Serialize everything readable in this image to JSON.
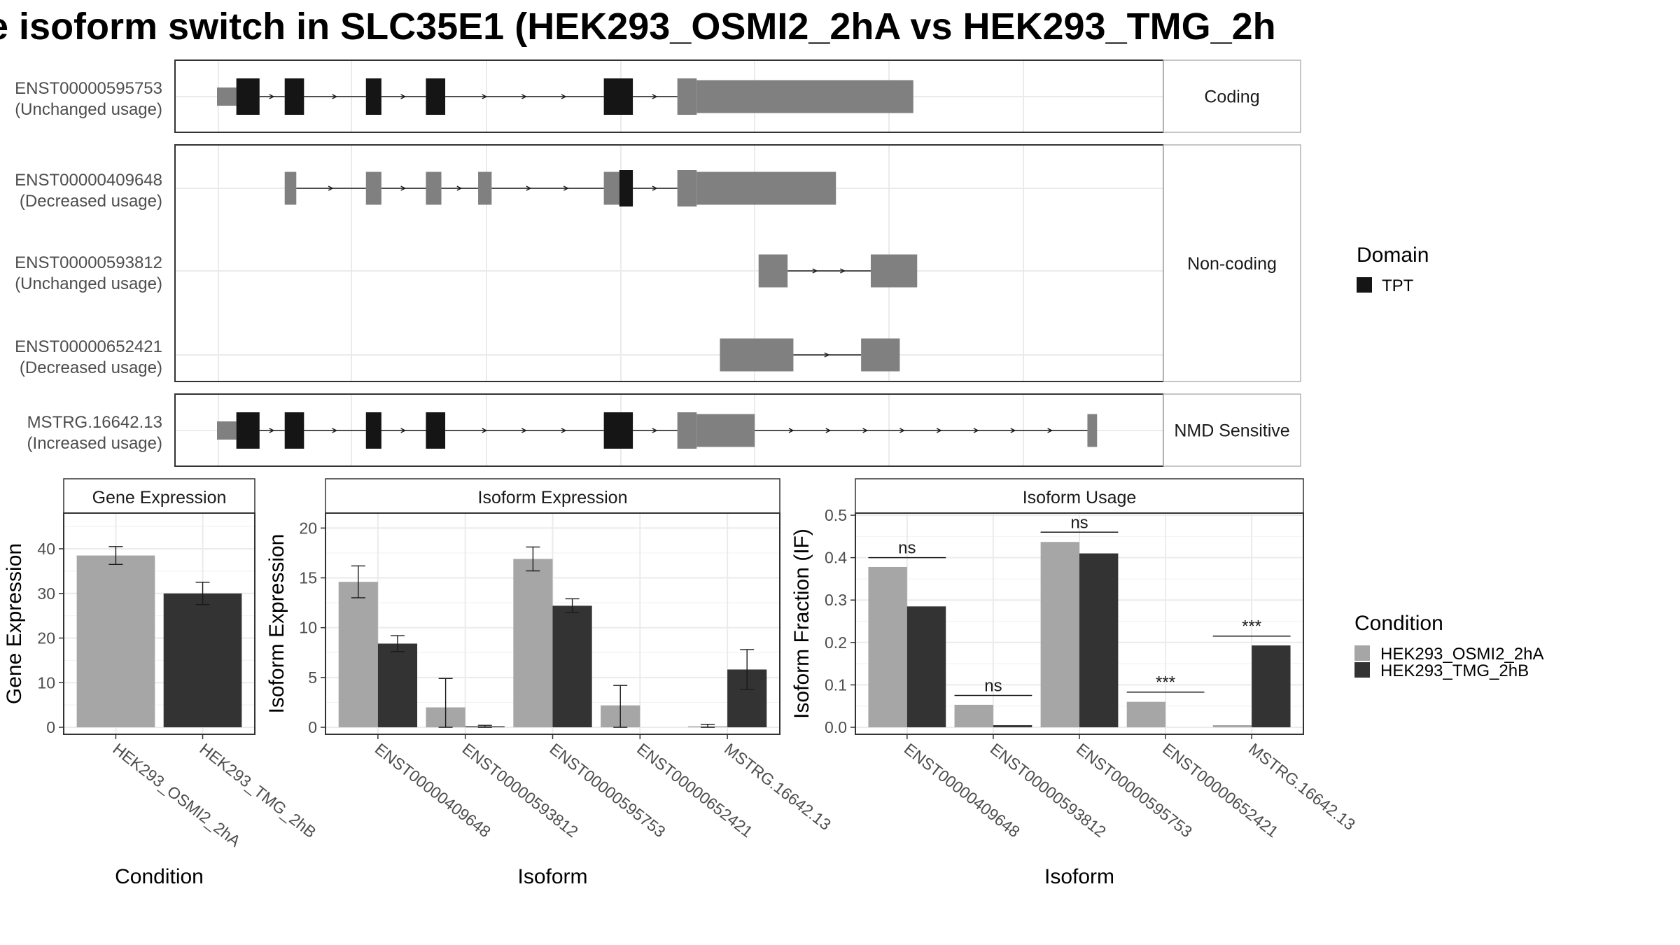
{
  "title": "e isoform switch in SLC35E1 (HEK293_OSMI2_2hA vs HEK293_TMG_2h",
  "colors": {
    "condA": "#a6a6a6",
    "condB": "#333333",
    "domain": "#151515",
    "utr": "#808080",
    "grid": "#ebebeb",
    "border": "#333333",
    "strip": "#ffffff"
  },
  "structure": {
    "panels": [
      {
        "label": "Coding",
        "rows": [
          0
        ]
      },
      {
        "label": "Non-coding",
        "rows": [
          1,
          2,
          3
        ]
      },
      {
        "label": "NMD Sensitive",
        "rows": [
          4
        ]
      }
    ],
    "isoforms": [
      {
        "id": "ENST00000595753",
        "usage": "(Unchanged usage)",
        "blocks": [
          [
            0.0,
            0.1,
            "utr",
            "s"
          ],
          [
            0.1,
            0.22,
            "dom",
            "t"
          ],
          [
            0.35,
            0.45,
            "dom",
            "t"
          ],
          [
            0.77,
            0.85,
            "dom",
            "t"
          ],
          [
            1.08,
            1.18,
            "dom",
            "t"
          ],
          [
            2.0,
            2.15,
            "dom",
            "t"
          ],
          [
            2.38,
            2.48,
            "utr",
            "t"
          ],
          [
            2.48,
            3.6,
            "utr",
            "m"
          ]
        ],
        "introns": [
          [
            0.22,
            0.35
          ],
          [
            0.45,
            0.77
          ],
          [
            0.85,
            1.08
          ],
          [
            1.18,
            2.0
          ],
          [
            2.15,
            2.38
          ]
        ]
      },
      {
        "id": "ENST00000409648",
        "usage": "(Decreased usage)",
        "blocks": [
          [
            0.35,
            0.41,
            "utr",
            "m"
          ],
          [
            0.77,
            0.85,
            "utr",
            "m"
          ],
          [
            1.08,
            1.16,
            "utr",
            "m"
          ],
          [
            1.35,
            1.42,
            "utr",
            "m"
          ],
          [
            2.0,
            2.08,
            "utr",
            "m"
          ],
          [
            2.08,
            2.15,
            "dom",
            "t"
          ],
          [
            2.38,
            2.48,
            "utr",
            "t"
          ],
          [
            2.48,
            3.2,
            "utr",
            "m"
          ]
        ],
        "introns": [
          [
            0.41,
            0.77
          ],
          [
            0.85,
            1.08
          ],
          [
            1.16,
            1.35
          ],
          [
            1.42,
            2.0
          ],
          [
            2.15,
            2.38
          ]
        ]
      },
      {
        "id": "ENST00000593812",
        "usage": "(Unchanged usage)",
        "blocks": [
          [
            2.8,
            2.95,
            "utr",
            "m"
          ],
          [
            3.38,
            3.62,
            "utr",
            "m"
          ]
        ],
        "introns": [
          [
            2.95,
            3.38
          ]
        ]
      },
      {
        "id": "ENST00000652421",
        "usage": "(Decreased usage)",
        "blocks": [
          [
            2.6,
            2.98,
            "utr",
            "m"
          ],
          [
            3.33,
            3.53,
            "utr",
            "m"
          ]
        ],
        "introns": [
          [
            2.98,
            3.33
          ]
        ]
      },
      {
        "id": "MSTRG.16642.13",
        "usage": "(Increased usage)",
        "blocks": [
          [
            0.0,
            0.1,
            "utr",
            "s"
          ],
          [
            0.1,
            0.22,
            "dom",
            "t"
          ],
          [
            0.35,
            0.45,
            "dom",
            "t"
          ],
          [
            0.77,
            0.85,
            "dom",
            "t"
          ],
          [
            1.08,
            1.18,
            "dom",
            "t"
          ],
          [
            2.0,
            2.15,
            "dom",
            "t"
          ],
          [
            2.38,
            2.48,
            "utr",
            "t"
          ],
          [
            2.48,
            2.78,
            "utr",
            "m"
          ],
          [
            4.5,
            4.55,
            "utr",
            "m"
          ]
        ],
        "introns": [
          [
            0.22,
            0.35
          ],
          [
            0.45,
            0.77
          ],
          [
            0.85,
            1.08
          ],
          [
            1.18,
            2.0
          ],
          [
            2.15,
            2.38
          ],
          [
            2.78,
            4.5
          ]
        ]
      }
    ]
  },
  "legend_domain": {
    "title": "Domain",
    "items": [
      "TPT"
    ]
  },
  "legend_condition": {
    "title": "Condition",
    "items": [
      "HEK293_OSMI2_2hA",
      "HEK293_TMG_2hB"
    ]
  },
  "chart_data": [
    {
      "type": "bar",
      "title": "Gene Expression",
      "xlabel": "Condition",
      "ylabel": "Gene Expression",
      "ylim": [
        0,
        48
      ],
      "yticks": [
        0,
        10,
        20,
        30,
        40
      ],
      "categories": [
        "HEK293_OSMI2_2hA",
        "HEK293_TMG_2hB"
      ],
      "values": [
        38.5,
        30.0
      ],
      "errors": [
        [
          36.5,
          40.5
        ],
        [
          27.5,
          32.5
        ]
      ]
    },
    {
      "type": "bar",
      "title": "Isoform Expression",
      "xlabel": "Isoform",
      "ylabel": "Isoform Expression",
      "ylim": [
        0,
        21.5
      ],
      "yticks": [
        0,
        5,
        10,
        15,
        20
      ],
      "categories": [
        "ENST00000409648",
        "ENST00000593812",
        "ENST00000595753",
        "ENST00000652421",
        "MSTRG.16642.13"
      ],
      "series": [
        {
          "name": "HEK293_OSMI2_2hA",
          "values": [
            14.6,
            2.0,
            16.9,
            2.2,
            0.1
          ],
          "errors": [
            [
              13.0,
              16.2
            ],
            [
              0.0,
              4.9
            ],
            [
              15.7,
              18.1
            ],
            [
              0.0,
              4.2
            ],
            [
              0.0,
              0.3
            ]
          ]
        },
        {
          "name": "HEK293_TMG_2hB",
          "values": [
            8.4,
            0.1,
            12.2,
            0.0,
            5.8
          ],
          "errors": [
            [
              7.6,
              9.2
            ],
            [
              0.0,
              0.2
            ],
            [
              11.5,
              12.9
            ],
            [
              0.0,
              0.0
            ],
            [
              3.8,
              7.8
            ]
          ]
        }
      ]
    },
    {
      "type": "bar",
      "title": "Isoform Usage",
      "xlabel": "Isoform",
      "ylabel": "Isoform Fraction (IF)",
      "ylim": [
        0,
        0.505
      ],
      "yticks": [
        0.0,
        0.1,
        0.2,
        0.3,
        0.4,
        0.5
      ],
      "ytick_labels": [
        "0.0",
        "0.1",
        "0.2",
        "0.3",
        "0.4",
        "0.5"
      ],
      "categories": [
        "ENST00000409648",
        "ENST00000593812",
        "ENST00000595753",
        "ENST00000652421",
        "MSTRG.16642.13"
      ],
      "series": [
        {
          "name": "HEK293_OSMI2_2hA",
          "values": [
            0.378,
            0.053,
            0.437,
            0.06,
            0.005
          ]
        },
        {
          "name": "HEK293_TMG_2hB",
          "values": [
            0.285,
            0.005,
            0.41,
            0.0,
            0.193
          ]
        }
      ],
      "significance": [
        {
          "category": 0,
          "label": "ns",
          "y": 0.4
        },
        {
          "category": 1,
          "label": "ns",
          "y": 0.075
        },
        {
          "category": 2,
          "label": "ns",
          "y": 0.46
        },
        {
          "category": 3,
          "label": "***",
          "y": 0.083
        },
        {
          "category": 4,
          "label": "***",
          "y": 0.215
        }
      ]
    }
  ]
}
